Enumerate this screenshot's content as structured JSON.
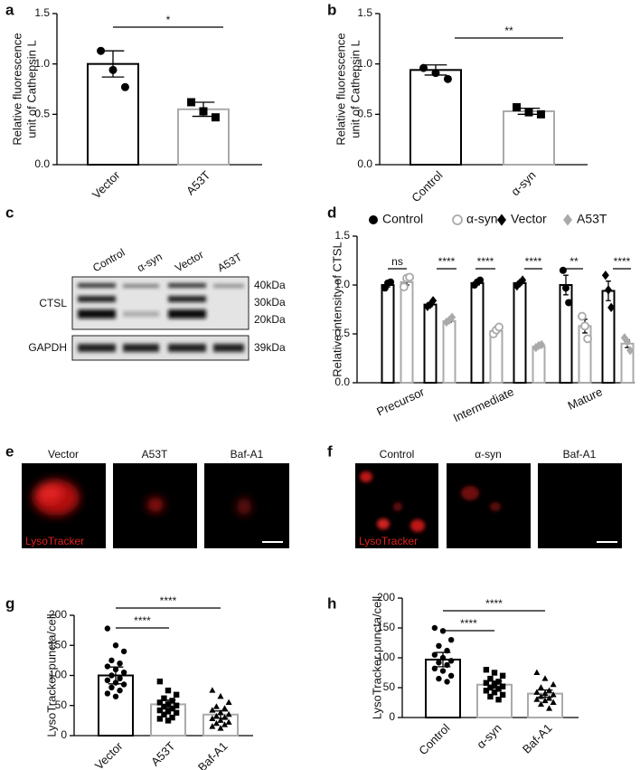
{
  "chart_data": [
    {
      "type": "bar",
      "panel": "a",
      "ylabel": [
        "Relative fluorescence",
        "unit of Cathepsin L"
      ],
      "categories": [
        "Vector",
        "A53T"
      ],
      "values": [
        1.0,
        0.55
      ],
      "errors": [
        0.13,
        0.07
      ],
      "points": [
        [
          1.13,
          0.94,
          0.77
        ],
        [
          0.62,
          0.53,
          0.47
        ]
      ],
      "colors": [
        "#000000",
        "#aaaaaa"
      ],
      "markers": [
        "circle",
        "square"
      ],
      "ylim": [
        0,
        1.5
      ],
      "yticks": [
        {
          "value": 0,
          "label": "0.0"
        },
        {
          "value": 0.5,
          "label": "0.5"
        },
        {
          "value": 1,
          "label": "1.0"
        },
        {
          "value": 1.5,
          "label": "1.5"
        }
      ],
      "significance": [
        "*"
      ]
    },
    {
      "type": "bar",
      "panel": "b",
      "ylabel": [
        "Relative fluorescence",
        "unit of Cathepsin L"
      ],
      "categories": [
        "Control",
        "α-syn"
      ],
      "values": [
        0.94,
        0.53
      ],
      "errors": [
        0.05,
        0.03
      ],
      "points": [
        [
          0.96,
          0.91,
          0.85
        ],
        [
          0.57,
          0.52,
          0.5
        ]
      ],
      "colors": [
        "#000000",
        "#aaaaaa"
      ],
      "markers": [
        "circle",
        "square"
      ],
      "ylim": [
        0,
        1.5
      ],
      "yticks": [
        {
          "value": 0,
          "label": "0.0"
        },
        {
          "value": 0.5,
          "label": "0.5"
        },
        {
          "value": 1,
          "label": "1.0"
        },
        {
          "value": 1.5,
          "label": "1.5"
        }
      ],
      "significance": [
        "**"
      ]
    },
    {
      "type": "grouped-bar",
      "panel": "d",
      "ylabel": [
        "Relative intensity of CTSL"
      ],
      "categories": [
        "Precursor",
        "Intermediate",
        "Mature"
      ],
      "series": [
        {
          "name": "Control",
          "color": "#000000",
          "marker": "circle",
          "values": [
            1.0,
            1.02,
            1.0
          ],
          "errors": [
            0.02,
            0.02,
            0.1
          ],
          "points": [
            [
              0.97,
              1.02,
              1.03
            ],
            [
              1.0,
              1.03,
              1.05
            ],
            [
              1.15,
              0.97,
              0.82
            ]
          ]
        },
        {
          "name": "α-syn",
          "color": "#aaaaaa",
          "marker": "open-circle",
          "values": [
            1.03,
            0.53,
            0.58
          ],
          "errors": [
            0.03,
            0.02,
            0.07
          ],
          "points": [
            [
              0.98,
              1.07,
              1.08
            ],
            [
              0.5,
              0.54,
              0.57
            ],
            [
              0.68,
              0.58,
              0.45
            ]
          ]
        },
        {
          "name": "Vector",
          "color": "#000000",
          "marker": "diamond",
          "values": [
            0.8,
            1.02,
            0.94
          ],
          "errors": [
            0.02,
            0.02,
            0.1
          ],
          "points": [
            [
              0.78,
              0.8,
              0.84
            ],
            [
              0.99,
              1.02,
              1.05
            ],
            [
              1.1,
              0.95,
              0.77
            ]
          ]
        },
        {
          "name": "A53T",
          "color": "#aaaaaa",
          "marker": "diamond",
          "values": [
            0.63,
            0.37,
            0.4
          ],
          "errors": [
            0.01,
            0.01,
            0.04
          ],
          "points": [
            [
              0.62,
              0.64,
              0.67
            ],
            [
              0.36,
              0.38,
              0.39
            ],
            [
              0.46,
              0.42,
              0.33
            ]
          ]
        }
      ],
      "ylim": [
        0,
        1.5
      ],
      "yticks": [
        {
          "value": 0,
          "label": "0.0"
        },
        {
          "value": 0.5,
          "label": "0.5"
        },
        {
          "value": 1,
          "label": "1.0"
        },
        {
          "value": 1.5,
          "label": "1.5"
        }
      ],
      "significance": [
        "ns",
        "****",
        "****",
        "****",
        "**",
        "****"
      ]
    },
    {
      "type": "bar",
      "panel": "g",
      "ylabel": [
        "LysoTracker puncta/cell"
      ],
      "categories": [
        "Vector",
        "A53T",
        "Baf-A1"
      ],
      "values": [
        100,
        52,
        35
      ],
      "errors": [
        14,
        7,
        6
      ],
      "points": [
        [
          178,
          150,
          140,
          125,
          120,
          115,
          110,
          105,
          100,
          95,
          92,
          88,
          85,
          80,
          75,
          70,
          65
        ],
        [
          90,
          75,
          68,
          62,
          58,
          55,
          52,
          50,
          48,
          45,
          42,
          40,
          38,
          35,
          30,
          28,
          25
        ],
        [
          75,
          65,
          55,
          48,
          45,
          42,
          38,
          35,
          32,
          30,
          28,
          25,
          22,
          20,
          18,
          15,
          12
        ]
      ],
      "colors": [
        "#000000",
        "#aaaaaa",
        "#aaaaaa"
      ],
      "markers": [
        "circle",
        "square",
        "triangle"
      ],
      "ylim": [
        0,
        200
      ],
      "yticks": [
        0,
        50,
        100,
        150,
        200
      ],
      "significance": [
        "****",
        "****"
      ]
    },
    {
      "type": "bar",
      "panel": "h",
      "ylabel": [
        "LysoTracker puncta/cell"
      ],
      "categories": [
        "Control",
        "α-syn",
        "Baf-A1"
      ],
      "values": [
        97,
        55,
        40
      ],
      "errors": [
        12,
        6,
        6
      ],
      "points": [
        [
          150,
          145,
          130,
          120,
          112,
          105,
          100,
          95,
          92,
          88,
          82,
          78,
          70,
          65,
          60
        ],
        [
          80,
          75,
          70,
          65,
          60,
          58,
          55,
          52,
          50,
          48,
          45,
          42,
          38,
          35,
          30
        ],
        [
          75,
          65,
          55,
          50,
          45,
          42,
          40,
          38,
          35,
          32,
          30,
          28,
          25,
          22,
          15
        ]
      ],
      "colors": [
        "#000000",
        "#aaaaaa",
        "#aaaaaa"
      ],
      "markers": [
        "circle",
        "square",
        "triangle"
      ],
      "ylim": [
        0,
        200
      ],
      "yticks": [
        0,
        50,
        100,
        150,
        200
      ],
      "significance": [
        "****",
        "****"
      ]
    }
  ],
  "blot": {
    "panel": "c",
    "lanes": [
      "Control",
      "α-syn",
      "Vector",
      "A53T"
    ],
    "rows": [
      "CTSL",
      "GAPDH"
    ],
    "sizes": [
      "40kDa",
      "30kDa",
      "20kDa",
      "39kDa"
    ]
  },
  "micrographs": [
    {
      "panel": "e",
      "labels": [
        "Vector",
        "A53T",
        "Baf-A1"
      ],
      "stain": "LysoTracker"
    },
    {
      "panel": "f",
      "labels": [
        "Control",
        "α-syn",
        "Baf-A1"
      ],
      "stain": "LysoTracker"
    }
  ]
}
